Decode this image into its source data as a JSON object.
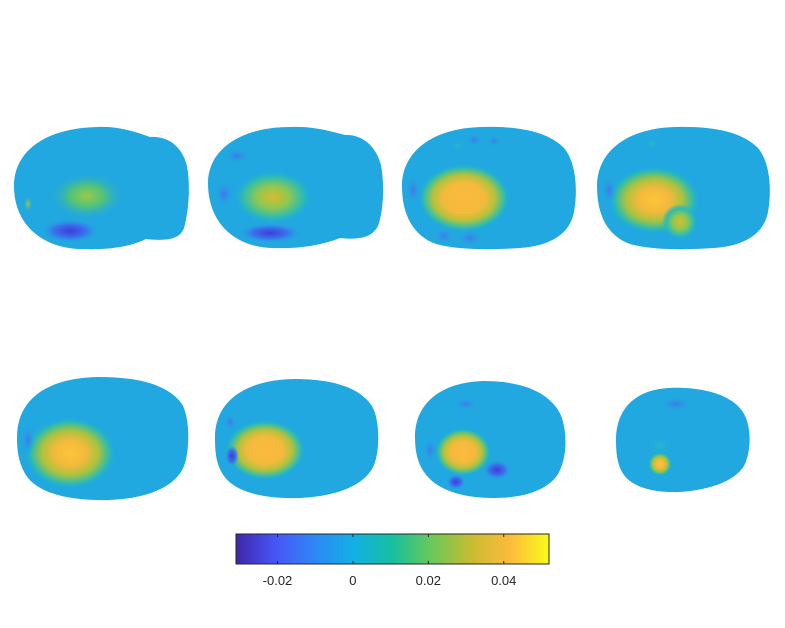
{
  "figure": {
    "panel_count": 8,
    "rows": 2,
    "columns": 4,
    "colormap": "parula",
    "colormap_stops": [
      "#3e26a8",
      "#4755f6",
      "#2e87f7",
      "#12b0e4",
      "#17bf9f",
      "#6bc85a",
      "#c6bc31",
      "#fcbb3d",
      "#f9fb15"
    ],
    "background_value_color": "#21a8e0",
    "hotspot_color": "#f8ba3c"
  },
  "colorbar": {
    "orientation": "horizontal",
    "range": [
      -0.031,
      0.052
    ],
    "ticks": [
      {
        "value": -0.02,
        "label": "-0.02"
      },
      {
        "value": 0,
        "label": "0"
      },
      {
        "value": 0.02,
        "label": "0.02"
      },
      {
        "value": 0.04,
        "label": "0.04"
      }
    ]
  }
}
